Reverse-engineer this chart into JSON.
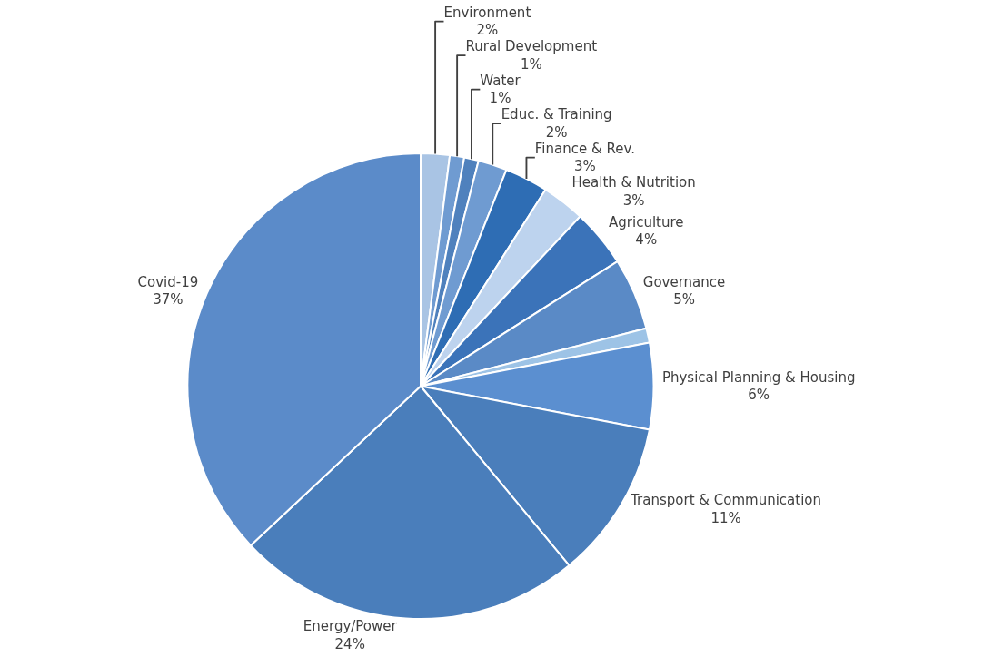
{
  "chart_data": {
    "type": "pie",
    "categories": [
      "Environment",
      "Rural Development",
      "Water",
      "Educ. & Training",
      "Finance & Rev.",
      "Health & Nutrition",
      "Agriculture",
      "Governance",
      null,
      "Physical Planning & Housing",
      "Transport & Communication",
      "Energy/Power",
      "Covid-19"
    ],
    "values": [
      2,
      1,
      1,
      2,
      3,
      3,
      4,
      5,
      1,
      6,
      11,
      24,
      37
    ],
    "value_labels": [
      "2%",
      "1%",
      "1%",
      "2%",
      "3%",
      "3%",
      "4%",
      "5%",
      null,
      "6%",
      "11%",
      "24%",
      "37%"
    ],
    "colors": [
      "#a9c4e4",
      "#6f9bd1",
      "#4f81bd",
      "#6f9bd1",
      "#2e6db4",
      "#bdd3ee",
      "#3b73b9",
      "#5a8ac6",
      "#9dc3e6",
      "#5b8fd0",
      "#4a7ebb",
      "#4a7ebb",
      "#5b8bc9"
    ],
    "legend": false
  }
}
